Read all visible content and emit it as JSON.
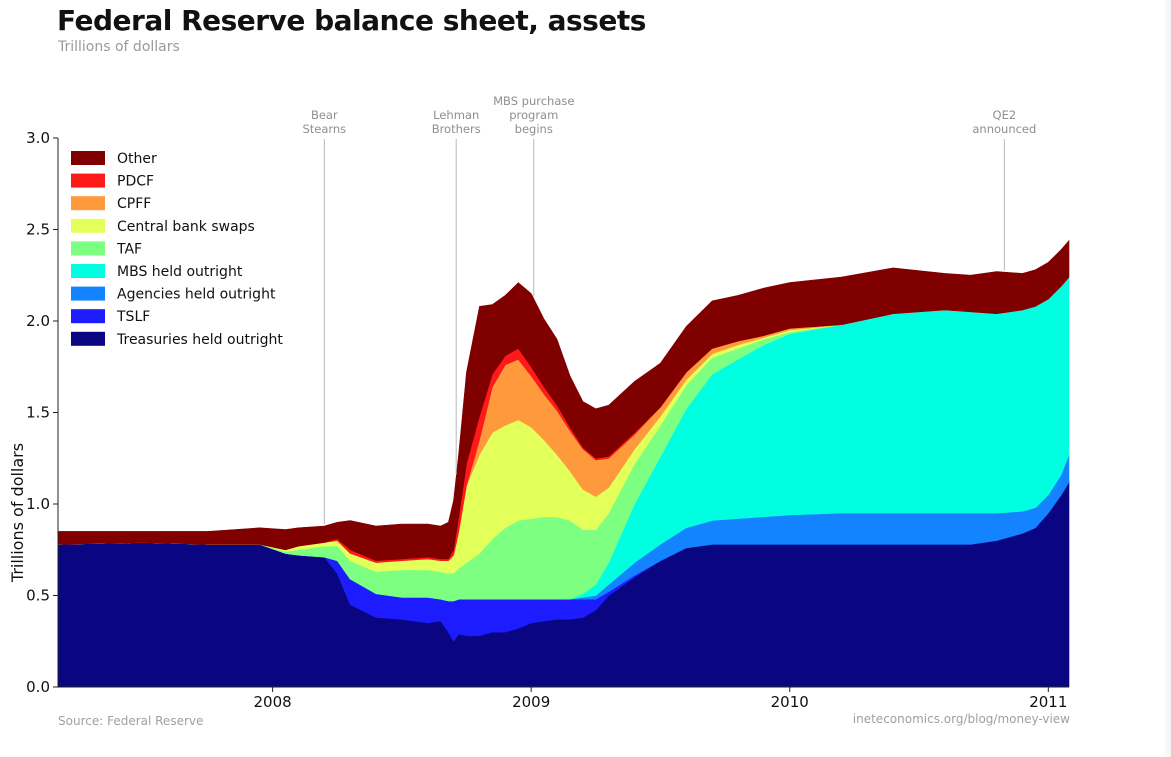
{
  "header": {
    "title": "Federal Reserve balance sheet, assets",
    "subtitle": "Trillions of dollars"
  },
  "footer": {
    "source": "Source: Federal Reserve",
    "credit": "ineteconomics.org/blog/money-view"
  },
  "colors": {
    "Other": "#800000",
    "PDCF": "#ff1a1a",
    "CPFF": "#ff9a3c",
    "Central bank swaps": "#e3ff5a",
    "TAF": "#7dff82",
    "MBS held outright": "#00ffe0",
    "Agencies held outright": "#1483ff",
    "TSLF": "#1c1cff",
    "Treasuries held outright": "#0a0682"
  },
  "chart_data": {
    "type": "area",
    "stacked": true,
    "title": "Federal Reserve balance sheet, assets",
    "subtitle": "Trillions of dollars",
    "xlabel": "",
    "ylabel": "Trillions of dollars",
    "ylim": [
      0,
      3.0
    ],
    "xlim": [
      2007.17,
      2011.08
    ],
    "yticks": [
      "0.0",
      "0.5",
      "1.0",
      "1.5",
      "2.0",
      "2.5",
      "3.0"
    ],
    "xticks": [
      {
        "value": 2008.0,
        "label": "2008"
      },
      {
        "value": 2009.0,
        "label": "2009"
      },
      {
        "value": 2010.0,
        "label": "2010"
      },
      {
        "value": 2011.0,
        "label": "2011"
      }
    ],
    "grid": false,
    "legend": "top-left",
    "x": [
      2007.17,
      2007.5,
      2007.75,
      2007.95,
      2008.05,
      2008.1,
      2008.2,
      2008.25,
      2008.3,
      2008.4,
      2008.5,
      2008.6,
      2008.65,
      2008.68,
      2008.7,
      2008.72,
      2008.75,
      2008.8,
      2008.85,
      2008.9,
      2008.95,
      2009.0,
      2009.05,
      2009.1,
      2009.15,
      2009.2,
      2009.25,
      2009.3,
      2009.4,
      2009.5,
      2009.6,
      2009.7,
      2009.8,
      2009.9,
      2010.0,
      2010.2,
      2010.4,
      2010.6,
      2010.7,
      2010.8,
      2010.9,
      2010.95,
      2011.0,
      2011.05,
      2011.08
    ],
    "series": [
      {
        "name": "Treasuries held outright",
        "values": [
          0.78,
          0.79,
          0.78,
          0.78,
          0.73,
          0.72,
          0.71,
          0.62,
          0.45,
          0.38,
          0.37,
          0.35,
          0.36,
          0.3,
          0.25,
          0.29,
          0.28,
          0.28,
          0.3,
          0.3,
          0.32,
          0.35,
          0.36,
          0.37,
          0.37,
          0.38,
          0.42,
          0.5,
          0.6,
          0.69,
          0.76,
          0.78,
          0.78,
          0.78,
          0.78,
          0.78,
          0.78,
          0.78,
          0.78,
          0.8,
          0.84,
          0.87,
          0.95,
          1.05,
          1.12
        ]
      },
      {
        "name": "TSLF",
        "values": [
          0,
          0,
          0,
          0,
          0,
          0,
          0,
          0.07,
          0.14,
          0.13,
          0.12,
          0.14,
          0.12,
          0.17,
          0.22,
          0.19,
          0.2,
          0.2,
          0.18,
          0.18,
          0.16,
          0.13,
          0.12,
          0.11,
          0.11,
          0.1,
          0.06,
          0.02,
          0.01,
          0,
          0,
          0,
          0,
          0,
          0,
          0,
          0,
          0,
          0,
          0,
          0,
          0,
          0,
          0,
          0
        ]
      },
      {
        "name": "Agencies held outright",
        "values": [
          0,
          0,
          0,
          0,
          0,
          0,
          0,
          0,
          0,
          0,
          0,
          0,
          0,
          0,
          0,
          0,
          0,
          0,
          0,
          0,
          0,
          0,
          0,
          0,
          0,
          0.01,
          0.02,
          0.04,
          0.07,
          0.09,
          0.11,
          0.13,
          0.14,
          0.15,
          0.16,
          0.17,
          0.17,
          0.17,
          0.17,
          0.15,
          0.12,
          0.11,
          0.1,
          0.11,
          0.15
        ]
      },
      {
        "name": "MBS held outright",
        "values": [
          0,
          0,
          0,
          0,
          0,
          0,
          0,
          0,
          0,
          0,
          0,
          0,
          0,
          0,
          0,
          0,
          0,
          0,
          0,
          0,
          0,
          0,
          0,
          0,
          0,
          0.02,
          0.06,
          0.12,
          0.32,
          0.48,
          0.65,
          0.8,
          0.87,
          0.94,
          0.99,
          1.03,
          1.09,
          1.11,
          1.1,
          1.09,
          1.1,
          1.1,
          1.07,
          1.03,
          0.97
        ]
      },
      {
        "name": "TAF",
        "values": [
          0,
          0,
          0,
          0,
          0.01,
          0.03,
          0.06,
          0.08,
          0.1,
          0.12,
          0.15,
          0.15,
          0.15,
          0.15,
          0.15,
          0.17,
          0.2,
          0.25,
          0.33,
          0.39,
          0.43,
          0.44,
          0.45,
          0.45,
          0.43,
          0.35,
          0.3,
          0.27,
          0.22,
          0.17,
          0.13,
          0.09,
          0.06,
          0.03,
          0.01,
          0,
          0,
          0,
          0,
          0,
          0,
          0,
          0,
          0,
          0
        ]
      },
      {
        "name": "Central bank swaps",
        "values": [
          0,
          0,
          0,
          0,
          0.01,
          0.02,
          0.02,
          0.03,
          0.04,
          0.05,
          0.05,
          0.06,
          0.06,
          0.07,
          0.1,
          0.2,
          0.42,
          0.54,
          0.58,
          0.56,
          0.55,
          0.5,
          0.42,
          0.34,
          0.27,
          0.22,
          0.18,
          0.14,
          0.08,
          0.05,
          0.03,
          0.02,
          0.02,
          0.01,
          0.01,
          0,
          0,
          0,
          0,
          0,
          0,
          0,
          0,
          0,
          0
        ]
      },
      {
        "name": "CPFF",
        "values": [
          0,
          0,
          0,
          0,
          0,
          0,
          0,
          0,
          0,
          0,
          0,
          0,
          0,
          0,
          0,
          0,
          0,
          0.08,
          0.25,
          0.33,
          0.33,
          0.28,
          0.25,
          0.24,
          0.22,
          0.22,
          0.2,
          0.16,
          0.08,
          0.05,
          0.04,
          0.03,
          0.02,
          0.01,
          0.01,
          0,
          0,
          0,
          0,
          0,
          0,
          0,
          0,
          0,
          0
        ]
      },
      {
        "name": "PDCF",
        "values": [
          0,
          0,
          0,
          0,
          0,
          0,
          0,
          0.01,
          0.02,
          0.01,
          0.01,
          0.01,
          0.01,
          0.01,
          0.03,
          0.08,
          0.12,
          0.13,
          0.07,
          0.05,
          0.06,
          0.05,
          0.04,
          0.03,
          0.02,
          0.01,
          0.01,
          0.01,
          0.01,
          0,
          0,
          0,
          0,
          0,
          0,
          0,
          0,
          0,
          0,
          0,
          0,
          0,
          0,
          0,
          0
        ]
      },
      {
        "name": "Other",
        "values": [
          0.07,
          0.06,
          0.07,
          0.09,
          0.11,
          0.1,
          0.09,
          0.09,
          0.16,
          0.19,
          0.19,
          0.18,
          0.18,
          0.2,
          0.27,
          0.35,
          0.5,
          0.6,
          0.38,
          0.33,
          0.36,
          0.4,
          0.37,
          0.36,
          0.28,
          0.25,
          0.27,
          0.28,
          0.28,
          0.24,
          0.25,
          0.26,
          0.25,
          0.26,
          0.25,
          0.26,
          0.25,
          0.2,
          0.2,
          0.23,
          0.2,
          0.2,
          0.2,
          0.2,
          0.2
        ]
      }
    ],
    "annotations": [
      {
        "x": 2008.2,
        "lines": [
          "Bear",
          "Stearns"
        ]
      },
      {
        "x": 2008.71,
        "lines": [
          "Lehman",
          "Brothers"
        ]
      },
      {
        "x": 2009.01,
        "lines": [
          "MBS purchase",
          "program",
          "begins"
        ]
      },
      {
        "x": 2010.83,
        "lines": [
          "QE2",
          "announced"
        ]
      }
    ]
  }
}
